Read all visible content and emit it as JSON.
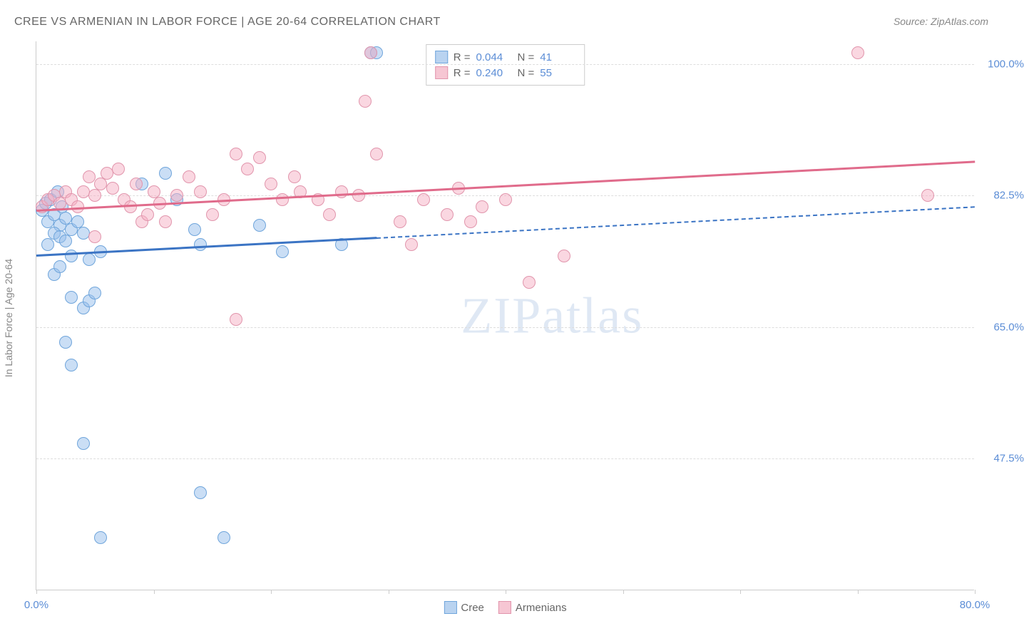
{
  "title": "CREE VS ARMENIAN IN LABOR FORCE | AGE 20-64 CORRELATION CHART",
  "source": "Source: ZipAtlas.com",
  "y_axis_label": "In Labor Force | Age 20-64",
  "watermark_a": "ZIP",
  "watermark_b": "atlas",
  "chart": {
    "type": "scatter",
    "xlim": [
      0,
      80
    ],
    "ylim": [
      30,
      103
    ],
    "x_ticks": [
      0,
      10,
      20,
      30,
      40,
      50,
      60,
      70,
      80
    ],
    "x_tick_labels": {
      "0": "0.0%",
      "80": "80.0%"
    },
    "y_gridlines": [
      47.5,
      65.0,
      82.5,
      100.0
    ],
    "y_tick_labels": [
      "47.5%",
      "65.0%",
      "82.5%",
      "100.0%"
    ],
    "background_color": "#ffffff",
    "grid_color": "#dddddd",
    "axis_color": "#cccccc",
    "tick_label_color": "#5b8dd6",
    "marker_radius": 9,
    "marker_stroke_width": 1.5,
    "series": [
      {
        "name": "Cree",
        "fill_color": "rgba(150,190,235,0.5)",
        "stroke_color": "#6fa5db",
        "swatch_fill": "#b9d3f0",
        "swatch_border": "#6fa5db",
        "R": "0.044",
        "N": "41",
        "trend": {
          "x1": 0,
          "y1": 74.5,
          "x2": 80,
          "y2": 81,
          "solid_until_x": 29,
          "color": "#3b74c4",
          "width": 3
        },
        "points": [
          [
            0.5,
            80.5
          ],
          [
            0.8,
            81.5
          ],
          [
            1.0,
            79
          ],
          [
            1.2,
            82
          ],
          [
            1.5,
            80
          ],
          [
            1.8,
            83
          ],
          [
            2.0,
            78.5
          ],
          [
            2.2,
            81
          ],
          [
            2.5,
            79.5
          ],
          [
            1.0,
            76
          ],
          [
            1.5,
            77.5
          ],
          [
            2.0,
            77
          ],
          [
            2.5,
            76.5
          ],
          [
            3.0,
            78
          ],
          [
            3.5,
            79
          ],
          [
            4.0,
            77.5
          ],
          [
            1.5,
            72
          ],
          [
            2.0,
            73
          ],
          [
            3.0,
            74.5
          ],
          [
            4.5,
            74
          ],
          [
            5.5,
            75
          ],
          [
            3.0,
            69
          ],
          [
            4.0,
            67.5
          ],
          [
            4.5,
            68.5
          ],
          [
            5.0,
            69.5
          ],
          [
            2.5,
            63
          ],
          [
            3.0,
            60
          ],
          [
            9.0,
            84
          ],
          [
            11.0,
            85.5
          ],
          [
            12.0,
            82
          ],
          [
            13.5,
            78
          ],
          [
            14.0,
            76
          ],
          [
            19.0,
            78.5
          ],
          [
            21.0,
            75
          ],
          [
            26.0,
            76
          ],
          [
            4.0,
            49.5
          ],
          [
            14.0,
            43
          ],
          [
            5.5,
            37
          ],
          [
            16.0,
            37
          ],
          [
            28.5,
            101.5
          ],
          [
            29.0,
            101.5
          ]
        ]
      },
      {
        "name": "Armenians",
        "fill_color": "rgba(245,175,195,0.5)",
        "stroke_color": "#e195ac",
        "swatch_fill": "#f6c6d3",
        "swatch_border": "#e195ac",
        "R": "0.240",
        "N": "55",
        "trend": {
          "x1": 0,
          "y1": 80.5,
          "x2": 80,
          "y2": 87,
          "solid_until_x": 80,
          "color": "#e06b8b",
          "width": 3
        },
        "points": [
          [
            0.5,
            81
          ],
          [
            1.0,
            82
          ],
          [
            1.5,
            82.5
          ],
          [
            2.0,
            81.5
          ],
          [
            2.5,
            83
          ],
          [
            3.0,
            82
          ],
          [
            3.5,
            81
          ],
          [
            4.0,
            83
          ],
          [
            4.5,
            85
          ],
          [
            5.0,
            82.5
          ],
          [
            5.5,
            84
          ],
          [
            6.0,
            85.5
          ],
          [
            6.5,
            83.5
          ],
          [
            7.0,
            86
          ],
          [
            7.5,
            82
          ],
          [
            8.0,
            81
          ],
          [
            8.5,
            84
          ],
          [
            9.0,
            79
          ],
          [
            9.5,
            80
          ],
          [
            10.0,
            83
          ],
          [
            10.5,
            81.5
          ],
          [
            11.0,
            79
          ],
          [
            12.0,
            82.5
          ],
          [
            13.0,
            85
          ],
          [
            14.0,
            83
          ],
          [
            15.0,
            80
          ],
          [
            16.0,
            82
          ],
          [
            17.0,
            88
          ],
          [
            18.0,
            86
          ],
          [
            19.0,
            87.5
          ],
          [
            20.0,
            84
          ],
          [
            21.0,
            82
          ],
          [
            22.0,
            85
          ],
          [
            22.5,
            83
          ],
          [
            24.0,
            82
          ],
          [
            25.0,
            80
          ],
          [
            26.0,
            83
          ],
          [
            27.5,
            82.5
          ],
          [
            28.0,
            95
          ],
          [
            29.0,
            88
          ],
          [
            28.5,
            101.5
          ],
          [
            31.0,
            79
          ],
          [
            33.0,
            82
          ],
          [
            35.0,
            80
          ],
          [
            36.0,
            83.5
          ],
          [
            37.0,
            79
          ],
          [
            38.0,
            81
          ],
          [
            40.0,
            82
          ],
          [
            42.0,
            71
          ],
          [
            45.0,
            74.5
          ],
          [
            17.0,
            66
          ],
          [
            5.0,
            77
          ],
          [
            32.0,
            76
          ],
          [
            70.0,
            101.5
          ],
          [
            76.0,
            82.5
          ]
        ]
      }
    ]
  },
  "stats_labels": {
    "R": "R =",
    "N": "N ="
  },
  "bottom_legend": [
    "Cree",
    "Armenians"
  ]
}
